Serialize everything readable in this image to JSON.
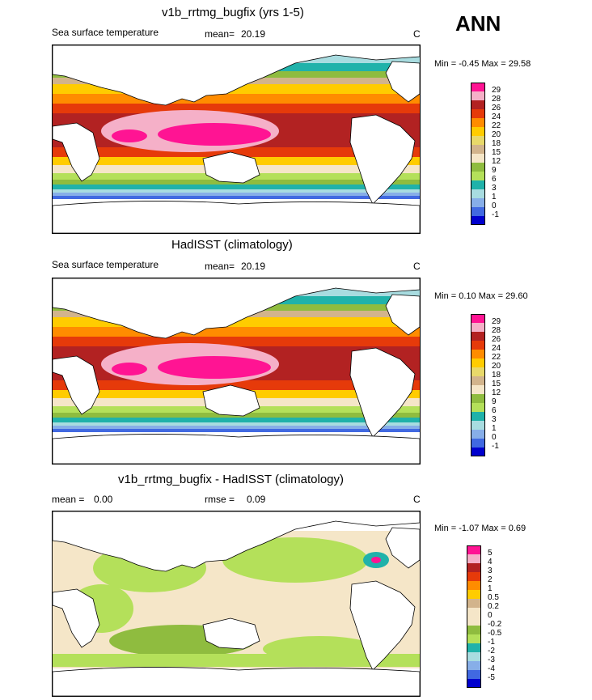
{
  "season": "ANN",
  "panels": [
    {
      "title": "v1b_rrtmg_bugfix (yrs 1-5)",
      "variable": "Sea surface temperature",
      "mean_label": "mean=",
      "mean_value": "20.19",
      "units": "C",
      "minmax": "Min =  -0.45 Max =  29.58",
      "levels": [
        "29",
        "28",
        "26",
        "24",
        "22",
        "20",
        "18",
        "15",
        "12",
        "9",
        "6",
        "3",
        "1",
        "0",
        "-1"
      ]
    },
    {
      "title": "HadISST (climatology)",
      "variable": "Sea surface temperature",
      "mean_label": "mean=",
      "mean_value": "20.19",
      "units": "C",
      "minmax": "Min =  0.10 Max =  29.60",
      "levels": [
        "29",
        "28",
        "26",
        "24",
        "22",
        "20",
        "18",
        "15",
        "12",
        "9",
        "6",
        "3",
        "1",
        "0",
        "-1"
      ]
    },
    {
      "title": "v1b_rrtmg_bugfix - HadISST (climatology)",
      "mean_label": "mean =",
      "mean_value": "0.00",
      "rmse_label": "rmse =",
      "rmse_value": "0.09",
      "units": "C",
      "minmax": "Min =  -1.07 Max =   0.69",
      "levels": [
        "5",
        "4",
        "3",
        "2",
        "1",
        "0.5",
        "0.2",
        "0",
        "-0.2",
        "-0.5",
        "-1",
        "-2",
        "-3",
        "-4",
        "-5"
      ]
    }
  ],
  "colors": {
    "sst_scale": [
      "#ff1493",
      "#f5b0c8",
      "#b22222",
      "#e63a0a",
      "#ff8c00",
      "#ffcc00",
      "#e8d96a",
      "#d2b48c",
      "#f5e6c8",
      "#8fbc3f",
      "#b4e05a",
      "#20b2aa",
      "#a8dce0",
      "#87aee8",
      "#4169e1",
      "#0000cd",
      "#9370db"
    ],
    "diff_scale": [
      "#ff1493",
      "#f5b0c8",
      "#b22222",
      "#e63a0a",
      "#ff8c00",
      "#ffcc00",
      "#d2b48c",
      "#f5e6c8",
      "#f5e6c8",
      "#8fbc3f",
      "#b4e05a",
      "#20b2aa",
      "#a8dce0",
      "#87aee8",
      "#4169e1",
      "#0000cd",
      "#9370db"
    ]
  }
}
